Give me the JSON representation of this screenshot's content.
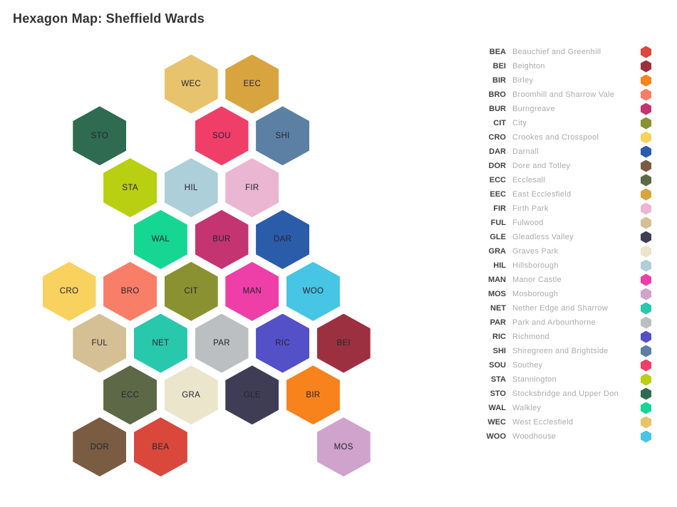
{
  "title": "Hexagon Map: Sheffield Wards",
  "wards": [
    {
      "code": "BEA",
      "name": "Beauchief and Greenhill",
      "color": "#d9483b",
      "col": 3,
      "row": 7
    },
    {
      "code": "BEI",
      "name": "Beighton",
      "color": "#9d3040",
      "col": 9,
      "row": 5
    },
    {
      "code": "BIR",
      "name": "Birley",
      "color": "#f8831d",
      "col": 8,
      "row": 6
    },
    {
      "code": "BRO",
      "name": "Broomhill and Sharrow Vale",
      "color": "#f97e68",
      "col": 2,
      "row": 4
    },
    {
      "code": "BUR",
      "name": "Burngreave",
      "color": "#c43471",
      "col": 5,
      "row": 3
    },
    {
      "code": "CIT",
      "name": "City",
      "color": "#8a9130",
      "col": 4,
      "row": 4
    },
    {
      "code": "CRO",
      "name": "Crookes and Crosspool",
      "color": "#f8d15e",
      "col": 0,
      "row": 4
    },
    {
      "code": "DAR",
      "name": "Darnall",
      "color": "#2a5caa",
      "col": 7,
      "row": 3
    },
    {
      "code": "DOR",
      "name": "Dore and Totley",
      "color": "#7a5c43",
      "col": 1,
      "row": 7
    },
    {
      "code": "ECC",
      "name": "Ecclesall",
      "color": "#5d6847",
      "col": 2,
      "row": 6
    },
    {
      "code": "EEC",
      "name": "East Ecclesfield",
      "color": "#d8a440",
      "col": 6,
      "row": 0
    },
    {
      "code": "FIR",
      "name": "Firth Park",
      "color": "#eab6d2",
      "col": 6,
      "row": 2
    },
    {
      "code": "FUL",
      "name": "Fulwood",
      "color": "#d5c096",
      "col": 1,
      "row": 5
    },
    {
      "code": "GLE",
      "name": "Gleadless Valley",
      "color": "#3e3d55",
      "col": 6,
      "row": 6
    },
    {
      "code": "GRA",
      "name": "Graves Park",
      "color": "#eae5cb",
      "col": 4,
      "row": 6
    },
    {
      "code": "HIL",
      "name": "Hillsborough",
      "color": "#accfd9",
      "col": 4,
      "row": 2
    },
    {
      "code": "MAN",
      "name": "Manor Castle",
      "color": "#ee3ea8",
      "col": 6,
      "row": 4
    },
    {
      "code": "MOS",
      "name": "Mosborough",
      "color": "#cfa3cc",
      "col": 9,
      "row": 7
    },
    {
      "code": "NET",
      "name": "Nether Edge and Sharrow",
      "color": "#27c8ab",
      "col": 3,
      "row": 5
    },
    {
      "code": "PAR",
      "name": "Park and Arbourthorne",
      "color": "#bcbfc1",
      "col": 5,
      "row": 5
    },
    {
      "code": "RIC",
      "name": "Richmond",
      "color": "#5450c7",
      "col": 7,
      "row": 5
    },
    {
      "code": "SHI",
      "name": "Shiregreen and Brightside",
      "color": "#5b80a4",
      "col": 7,
      "row": 1
    },
    {
      "code": "SOU",
      "name": "Southey",
      "color": "#ef3e68",
      "col": 5,
      "row": 1
    },
    {
      "code": "STA",
      "name": "Stannington",
      "color": "#b9cf11",
      "col": 2,
      "row": 2
    },
    {
      "code": "STO",
      "name": "Stocksbridge and Upper Don",
      "color": "#2e6b51",
      "col": 1,
      "row": 1
    },
    {
      "code": "WAL",
      "name": "Walkley",
      "color": "#16d694",
      "col": 3,
      "row": 3
    },
    {
      "code": "WEC",
      "name": "West Ecclesfield",
      "color": "#e8c36d",
      "col": 4,
      "row": 0
    },
    {
      "code": "WOO",
      "name": "Woodhouse",
      "color": "#46c5e4",
      "col": 8,
      "row": 4
    }
  ]
}
